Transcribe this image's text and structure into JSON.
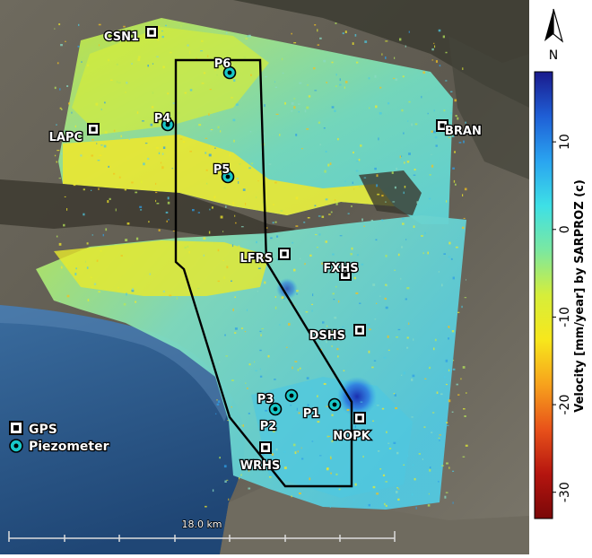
{
  "north_label": "N",
  "colorbar": {
    "title": "Velocity [mm/year]  by  SARPROZ (c)",
    "ticks": [
      10,
      0,
      -10,
      -20,
      -30
    ],
    "min": -33,
    "max": 18,
    "colors_top_to_bottom": [
      "#1a1a8c",
      "#1f5fd6",
      "#2aa4f0",
      "#3ee0e6",
      "#7be8a0",
      "#d6ee3a",
      "#f7e71c",
      "#f7a21c",
      "#e8521a",
      "#b5150f",
      "#7a0808"
    ]
  },
  "gps_stations": [
    {
      "id": "CSN1",
      "label": "CSN1"
    },
    {
      "id": "LAPC",
      "label": "LAPC"
    },
    {
      "id": "BRAN",
      "label": "BRAN"
    },
    {
      "id": "LFRS",
      "label": "LFRS"
    },
    {
      "id": "FXHS",
      "label": "FXHS"
    },
    {
      "id": "DSHS",
      "label": "DSHS"
    },
    {
      "id": "NOPK",
      "label": "NOPK"
    },
    {
      "id": "WRHS",
      "label": "WRHS"
    }
  ],
  "piezometers": [
    {
      "id": "P6",
      "label": "P6"
    },
    {
      "id": "P4",
      "label": "P4"
    },
    {
      "id": "P5",
      "label": "P5"
    },
    {
      "id": "P3",
      "label": "P3"
    },
    {
      "id": "P1",
      "label": "P1"
    },
    {
      "id": "P2",
      "label": "P2"
    }
  ],
  "legend": {
    "gps_label": "GPS",
    "piezometer_label": "Piezometer"
  },
  "scale_bar": {
    "label": "18.0 km"
  },
  "colors": {
    "gps_marker": "#ffffff",
    "piezometer_marker": "#18c8c8",
    "outline": "#000000",
    "ocean": "#2f5d8f"
  }
}
